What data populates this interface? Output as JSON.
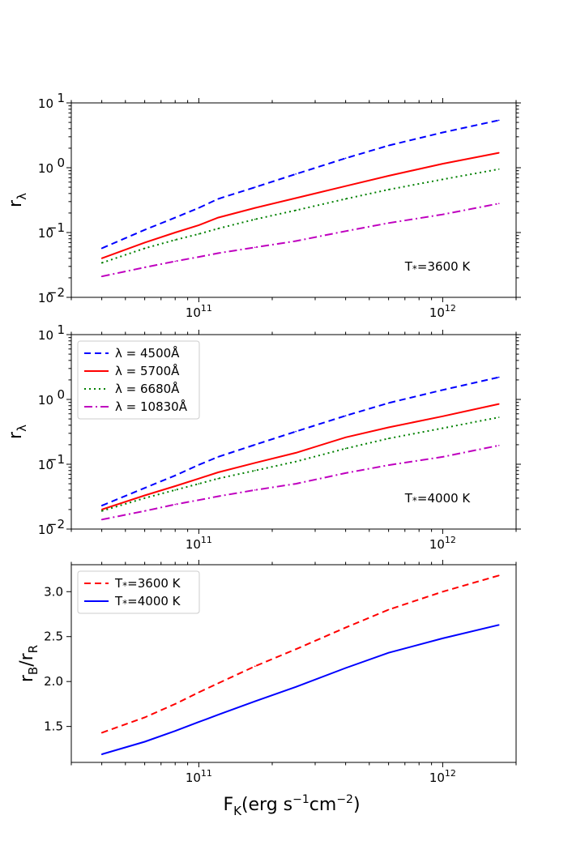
{
  "colors": {
    "blue": "#0000ff",
    "red": "#ff0000",
    "green": "#008000",
    "magenta": "#bf00bf"
  },
  "chart_data": [
    {
      "id": "top",
      "type": "line",
      "xscale": "log",
      "yscale": "log",
      "xlim": [
        30000000000.0,
        2000000000000.0
      ],
      "ylim": [
        0.01,
        10
      ],
      "xticks": [
        {
          "value": 100000000000.0,
          "base": "10",
          "exp": "11"
        },
        {
          "value": 1000000000000.0,
          "base": "10",
          "exp": "12"
        }
      ],
      "yticks": [
        {
          "value": 0.01,
          "base": "10",
          "exp": "−2"
        },
        {
          "value": 0.1,
          "base": "10",
          "exp": "−1"
        },
        {
          "value": 1,
          "base": "10",
          "exp": "0"
        },
        {
          "value": 10,
          "base": "10",
          "exp": "1"
        }
      ],
      "ylabel": {
        "main": "r",
        "sub": "λ"
      },
      "annotation": {
        "main": "T",
        "sub": "*",
        "rest": "=3600 K",
        "x": 700000000000.0,
        "y": 0.03
      },
      "legend": null,
      "series": [
        {
          "name": "λ = 4500Å",
          "color": "blue",
          "dash": "8,5",
          "x": [
            40000000000.0,
            60000000000.0,
            80000000000.0,
            100000000000.0,
            120000000000.0,
            170000000000.0,
            250000000000.0,
            400000000000.0,
            600000000000.0,
            1000000000000.0,
            1700000000000.0
          ],
          "y": [
            0.057,
            0.11,
            0.17,
            0.24,
            0.33,
            0.5,
            0.8,
            1.4,
            2.2,
            3.5,
            5.4
          ]
        },
        {
          "name": "λ = 5700Å",
          "color": "red",
          "dash": "",
          "x": [
            40000000000.0,
            60000000000.0,
            80000000000.0,
            100000000000.0,
            120000000000.0,
            170000000000.0,
            250000000000.0,
            400000000000.0,
            600000000000.0,
            1000000000000.0,
            1700000000000.0
          ],
          "y": [
            0.04,
            0.07,
            0.1,
            0.13,
            0.17,
            0.24,
            0.34,
            0.52,
            0.75,
            1.15,
            1.7
          ]
        },
        {
          "name": "λ = 6680Å",
          "color": "green",
          "dash": "2,4",
          "x": [
            40000000000.0,
            60000000000.0,
            80000000000.0,
            100000000000.0,
            120000000000.0,
            170000000000.0,
            250000000000.0,
            400000000000.0,
            600000000000.0,
            1000000000000.0,
            1700000000000.0
          ],
          "y": [
            0.034,
            0.057,
            0.077,
            0.095,
            0.115,
            0.16,
            0.22,
            0.33,
            0.46,
            0.66,
            0.95
          ]
        },
        {
          "name": "λ = 10830Å",
          "color": "magenta",
          "dash": "10,4,2,4",
          "x": [
            40000000000.0,
            60000000000.0,
            80000000000.0,
            100000000000.0,
            120000000000.0,
            170000000000.0,
            250000000000.0,
            400000000000.0,
            600000000000.0,
            1000000000000.0,
            1700000000000.0
          ],
          "y": [
            0.021,
            0.029,
            0.036,
            0.042,
            0.048,
            0.059,
            0.074,
            0.105,
            0.14,
            0.19,
            0.28
          ]
        }
      ]
    },
    {
      "id": "middle",
      "type": "line",
      "xscale": "log",
      "yscale": "log",
      "xlim": [
        30000000000.0,
        2000000000000.0
      ],
      "ylim": [
        0.01,
        10
      ],
      "xticks": [
        {
          "value": 100000000000.0,
          "base": "10",
          "exp": "11"
        },
        {
          "value": 1000000000000.0,
          "base": "10",
          "exp": "12"
        }
      ],
      "yticks": [
        {
          "value": 0.01,
          "base": "10",
          "exp": "−2"
        },
        {
          "value": 0.1,
          "base": "10",
          "exp": "−1"
        },
        {
          "value": 1,
          "base": "10",
          "exp": "0"
        },
        {
          "value": 10,
          "base": "10",
          "exp": "1"
        }
      ],
      "ylabel": {
        "main": "r",
        "sub": "λ"
      },
      "annotation": {
        "main": "T",
        "sub": "*",
        "rest": "=4000 K",
        "x": 700000000000.0,
        "y": 0.03
      },
      "legend": {
        "position": "upper-left"
      },
      "series": [
        {
          "name": "λ = 4500Å",
          "label_prefix": "λ = ",
          "label_value": "4500Å",
          "color": "blue",
          "dash": "8,5",
          "x": [
            40000000000.0,
            60000000000.0,
            80000000000.0,
            100000000000.0,
            120000000000.0,
            170000000000.0,
            250000000000.0,
            400000000000.0,
            600000000000.0,
            1000000000000.0,
            1700000000000.0
          ],
          "y": [
            0.023,
            0.043,
            0.067,
            0.098,
            0.13,
            0.2,
            0.32,
            0.56,
            0.88,
            1.4,
            2.2
          ]
        },
        {
          "name": "λ = 5700Å",
          "label_prefix": "λ = ",
          "label_value": "5700Å",
          "color": "red",
          "dash": "",
          "x": [
            40000000000.0,
            60000000000.0,
            80000000000.0,
            100000000000.0,
            120000000000.0,
            170000000000.0,
            250000000000.0,
            400000000000.0,
            600000000000.0,
            1000000000000.0,
            1700000000000.0
          ],
          "y": [
            0.02,
            0.033,
            0.046,
            0.06,
            0.075,
            0.105,
            0.15,
            0.26,
            0.37,
            0.55,
            0.85
          ]
        },
        {
          "name": "λ = 6680Å",
          "label_prefix": "λ = ",
          "label_value": "6680Å",
          "color": "green",
          "dash": "2,4",
          "x": [
            40000000000.0,
            60000000000.0,
            80000000000.0,
            100000000000.0,
            120000000000.0,
            170000000000.0,
            250000000000.0,
            400000000000.0,
            600000000000.0,
            1000000000000.0,
            1700000000000.0
          ],
          "y": [
            0.019,
            0.03,
            0.04,
            0.05,
            0.06,
            0.08,
            0.11,
            0.175,
            0.25,
            0.36,
            0.53
          ]
        },
        {
          "name": "λ = 10830Å",
          "label_prefix": "λ = ",
          "label_value": "10830Å",
          "color": "magenta",
          "dash": "10,4,2,4",
          "x": [
            40000000000.0,
            60000000000.0,
            80000000000.0,
            100000000000.0,
            120000000000.0,
            170000000000.0,
            250000000000.0,
            400000000000.0,
            600000000000.0,
            1000000000000.0,
            1700000000000.0
          ],
          "y": [
            0.014,
            0.019,
            0.024,
            0.028,
            0.032,
            0.04,
            0.05,
            0.073,
            0.097,
            0.13,
            0.195
          ]
        }
      ]
    },
    {
      "id": "bottom",
      "type": "line",
      "xscale": "log",
      "yscale": "linear",
      "xlim": [
        30000000000.0,
        2000000000000.0
      ],
      "ylim": [
        1.1,
        3.3
      ],
      "xticks": [
        {
          "value": 100000000000.0,
          "base": "10",
          "exp": "11"
        },
        {
          "value": 1000000000000.0,
          "base": "10",
          "exp": "12"
        }
      ],
      "yticks": [
        {
          "value": 1.5,
          "label": "1.5"
        },
        {
          "value": 2.0,
          "label": "2.0"
        },
        {
          "value": 2.5,
          "label": "2.5"
        },
        {
          "value": 3.0,
          "label": "3.0"
        }
      ],
      "ylabel": {
        "main": "r",
        "sub": "B",
        "rest": "/r",
        "sub2": "R"
      },
      "annotation": null,
      "legend": {
        "position": "upper-left"
      },
      "series": [
        {
          "name": "T*=3600 K",
          "label_prefix": "T",
          "label_sub": "*",
          "label_value": "=3600 K",
          "color": "red",
          "dash": "8,5",
          "x": [
            40000000000.0,
            60000000000.0,
            80000000000.0,
            100000000000.0,
            120000000000.0,
            170000000000.0,
            250000000000.0,
            400000000000.0,
            600000000000.0,
            1000000000000.0,
            1700000000000.0
          ],
          "y": [
            1.43,
            1.6,
            1.75,
            1.88,
            1.98,
            2.17,
            2.36,
            2.6,
            2.8,
            3.0,
            3.18
          ]
        },
        {
          "name": "T*=4000 K",
          "label_prefix": "T",
          "label_sub": "*",
          "label_value": "=4000 K",
          "color": "blue",
          "dash": "",
          "x": [
            40000000000.0,
            60000000000.0,
            80000000000.0,
            100000000000.0,
            120000000000.0,
            170000000000.0,
            250000000000.0,
            400000000000.0,
            600000000000.0,
            1000000000000.0,
            1700000000000.0
          ],
          "y": [
            1.19,
            1.33,
            1.45,
            1.55,
            1.63,
            1.78,
            1.94,
            2.15,
            2.32,
            2.48,
            2.63
          ]
        }
      ]
    }
  ],
  "xaxis_label": {
    "main": "F",
    "sub": "K",
    "unit_open": "(erg s",
    "sup1": "−1",
    "unit_mid": "cm",
    "sup2": "−2",
    "unit_close": ")"
  }
}
